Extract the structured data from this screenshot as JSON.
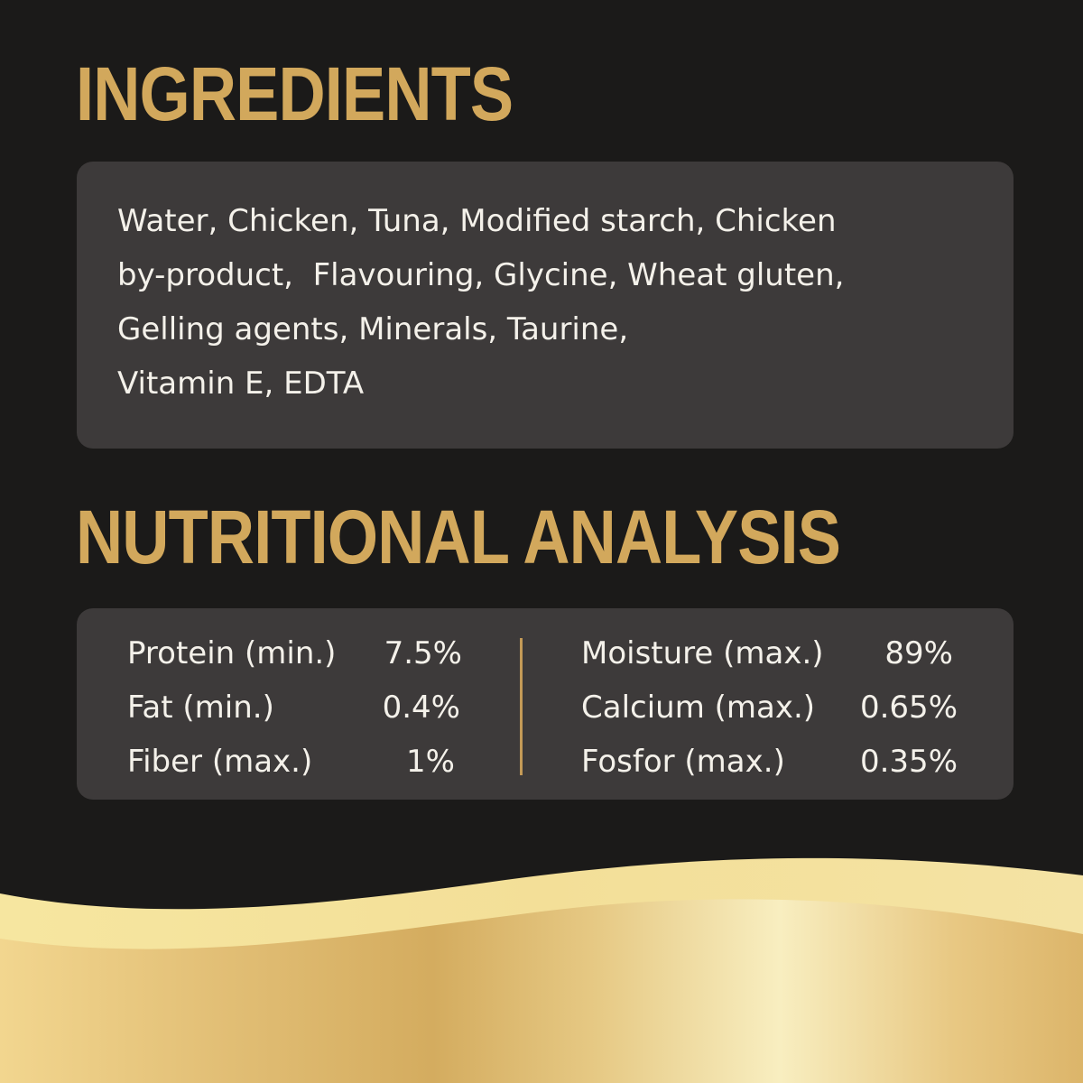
{
  "ingredients": {
    "title": "INGREDIENTS",
    "lines": [
      "Water, Chicken, Tuna, Modified starch, Chicken",
      "by-product,  Flavouring, Glycine, Wheat gluten,",
      "Gelling agents, Minerals, Taurine,",
      "Vitamin E, EDTA"
    ]
  },
  "nutrition": {
    "title": "NUTRITIONAL ANALYSIS",
    "left": [
      {
        "label": "Protein (min.)",
        "value": "7.5%"
      },
      {
        "label": "Fat (min.)",
        "value": "0.4%"
      },
      {
        "label": "Fiber (max.)",
        "value": "1%"
      }
    ],
    "right": [
      {
        "label": "Moisture (max.)",
        "value": "89%"
      },
      {
        "label": "Calcium (max.)",
        "value": "0.65%"
      },
      {
        "label": "Fosfor (max.)",
        "value": "0.35%"
      }
    ]
  },
  "colors": {
    "background": "#1b1a19",
    "panel": "#3d3a3a",
    "heading": "#d2a85c",
    "text": "#f4f1ea",
    "divider": "#c49a57"
  }
}
